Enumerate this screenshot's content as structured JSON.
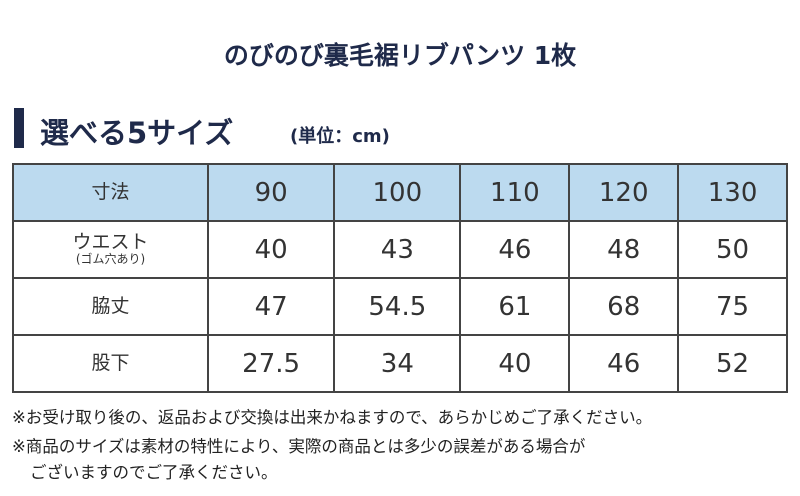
{
  "header": {
    "title": "のびのび裏毛裾リブパンツ 1枚"
  },
  "section": {
    "title": "選べる5サイズ",
    "unit": "(単位：cm)"
  },
  "table": {
    "header": {
      "label": "寸法",
      "sizes": [
        90,
        100,
        110,
        120,
        130
      ]
    },
    "rows": [
      {
        "label": "ウエスト",
        "sublabel": "(ゴム穴あり)",
        "values": [
          40,
          43,
          46,
          48,
          50
        ]
      },
      {
        "label": "脇丈",
        "values": [
          47,
          54.5,
          61,
          68,
          75
        ]
      },
      {
        "label": "股下",
        "values": [
          27.5,
          34,
          40,
          46,
          52
        ]
      }
    ]
  },
  "notes": [
    "※お受け取り後の、返品および交換は出来かねますので、あらかじめご了承ください。",
    "※商品のサイズは素材の特性により、実際の商品とは多少の誤差がある場合が",
    "ございますのでご了承ください。"
  ]
}
